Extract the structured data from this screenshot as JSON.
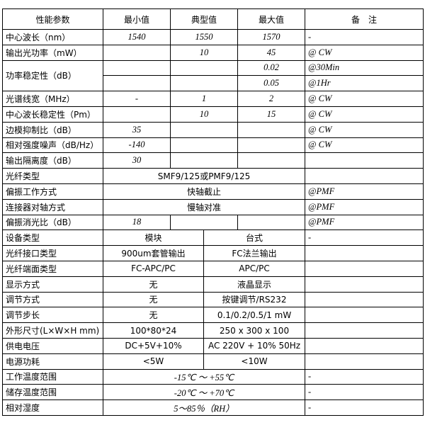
{
  "header": [
    "性能参数",
    "最小值",
    "典型值",
    "最大值",
    "备　注"
  ],
  "rows_a": [
    {
      "param": "中心波长（nm）",
      "min": "1540",
      "typ": "1550",
      "max": "1570",
      "note": "-"
    },
    {
      "param": "输出光功率（mW）",
      "min": "",
      "typ": "10",
      "max": "45",
      "note": "@ CW"
    }
  ],
  "power_stability": {
    "param": "功率稳定性（dB）",
    "sub": [
      {
        "min": "",
        "typ": "",
        "max": "0.02",
        "note": "@30Min"
      },
      {
        "min": "",
        "typ": "",
        "max": "0.05",
        "note": "@1Hr"
      }
    ]
  },
  "rows_b": [
    {
      "param": "光谱线宽（MHz）",
      "min": "-",
      "typ": "1",
      "max": "2",
      "note": "@ CW"
    },
    {
      "param": "中心波长稳定性（Pm）",
      "min": "",
      "typ": "10",
      "max": "15",
      "note": "@ CW"
    },
    {
      "param": "边模抑制比（dB）",
      "min": "35",
      "typ": "",
      "max": "",
      "note": "@ CW"
    },
    {
      "param": "相对强度噪声（dB/Hz）",
      "min": "-140",
      "typ": "",
      "max": "",
      "note": "@ CW"
    },
    {
      "param": "输出隔离度（dB）",
      "min": "30",
      "typ": "",
      "max": "",
      "note": ""
    }
  ],
  "rows_span": [
    {
      "param": "光纤类型",
      "value": "SMF9/125或PMF9/125",
      "note": ""
    },
    {
      "param": "偏振工作方式",
      "value": "快轴截止",
      "note": "@PMF"
    },
    {
      "param": "连接器对轴方式",
      "value": "慢轴对准",
      "note": "@PMF"
    }
  ],
  "extinction": {
    "param": "偏振消光比（dB）",
    "min": "18",
    "typ": "",
    "max": "",
    "note": "@PMF"
  },
  "rows_device": [
    {
      "param": "设备类型",
      "module": "模块",
      "desktop": "台式",
      "note": "-"
    },
    {
      "param": "光纤接口类型",
      "module": "900um套管输出",
      "desktop": "FC法兰输出",
      "note": ""
    },
    {
      "param": "光纤端面类型",
      "module": "FC-APC/PC",
      "desktop": "APC/PC",
      "note": ""
    },
    {
      "param": "显示方式",
      "module": "无",
      "desktop": "液晶显示",
      "note": ""
    },
    {
      "param": "调节方式",
      "module": "无",
      "desktop": "按键调节/RS232",
      "note": ""
    },
    {
      "param": "调节步长",
      "module": "无",
      "desktop": "0.1/0.2/0.5/1 mW",
      "note": ""
    },
    {
      "param": "外形尺寸(L×W×H mm)",
      "module": "100*80*24",
      "desktop": "250 x 300 x 100",
      "note": ""
    },
    {
      "param": "供电电压",
      "module": "DC+5V+10%",
      "desktop": "AC 220V + 10% 50Hz",
      "note": ""
    },
    {
      "param": "电源功耗",
      "module": "<5W",
      "desktop": "<10W",
      "note": ""
    }
  ],
  "rows_env": [
    {
      "param": "工作温度范围",
      "value": "-15℃ ～ +55℃",
      "note": "-"
    },
    {
      "param": "储存温度范围",
      "value": "-20℃ ～ +70℃",
      "note": "-"
    },
    {
      "param": "相对湿度",
      "value": "5～85％（RH）",
      "note": "-"
    }
  ]
}
